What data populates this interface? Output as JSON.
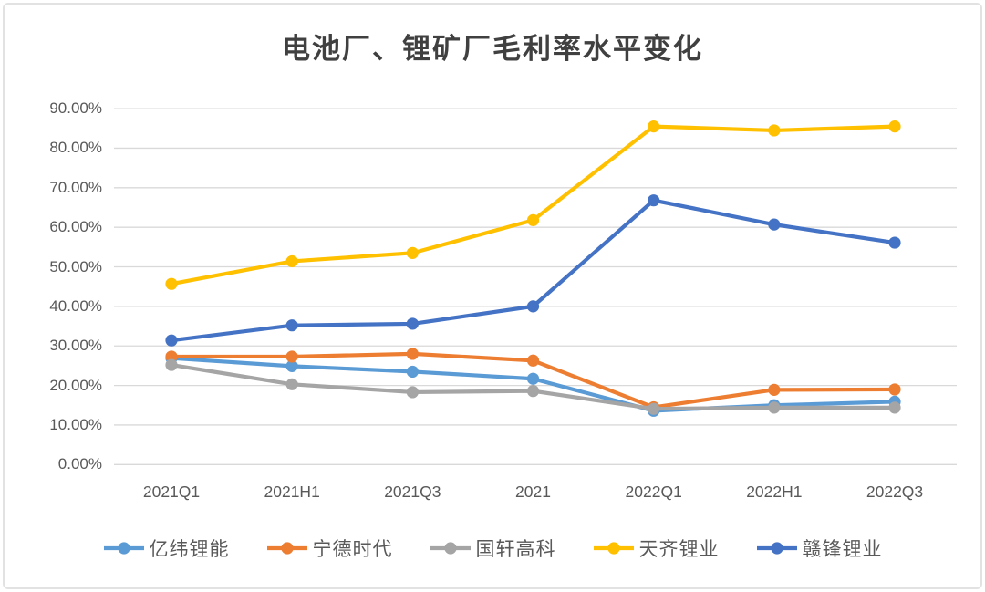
{
  "chart": {
    "title": "电池厂、锂矿厂毛利率水平变化"
  },
  "chart_data": {
    "type": "line",
    "title": "电池厂、锂矿厂毛利率水平变化",
    "categories": [
      "2021Q1",
      "2021H1",
      "2021Q3",
      "2021",
      "2022Q1",
      "2022H1",
      "2022Q3"
    ],
    "series": [
      {
        "name": "亿纬锂能",
        "color": "#5B9BD5",
        "values": [
          26.9,
          24.9,
          23.5,
          21.7,
          13.6,
          15.0,
          15.9
        ]
      },
      {
        "name": "宁德时代",
        "color": "#ED7D31",
        "values": [
          27.3,
          27.3,
          28.0,
          26.3,
          14.5,
          18.9,
          19.0
        ]
      },
      {
        "name": "国轩高科",
        "color": "#A5A5A5",
        "values": [
          25.2,
          20.3,
          18.3,
          18.6,
          14.1,
          14.4,
          14.4
        ]
      },
      {
        "name": "天齐锂业",
        "color": "#FFC000",
        "values": [
          45.7,
          51.4,
          53.5,
          61.8,
          85.5,
          84.5,
          85.5
        ]
      },
      {
        "name": "赣锋锂业",
        "color": "#4472C4",
        "values": [
          31.4,
          35.2,
          35.6,
          40.0,
          66.8,
          60.7,
          56.1
        ]
      }
    ],
    "y_axis": {
      "tick_labels": [
        "90.00%",
        "80.00%",
        "70.00%",
        "60.00%",
        "50.00%",
        "40.00%",
        "30.00%",
        "20.00%",
        "10.00%",
        "0.00%"
      ],
      "min": 0,
      "max": 90,
      "step": 10
    },
    "ylim": [
      0,
      90
    ],
    "grid": true,
    "gridline_color": "#d9d9d9",
    "legend_position": "bottom"
  }
}
